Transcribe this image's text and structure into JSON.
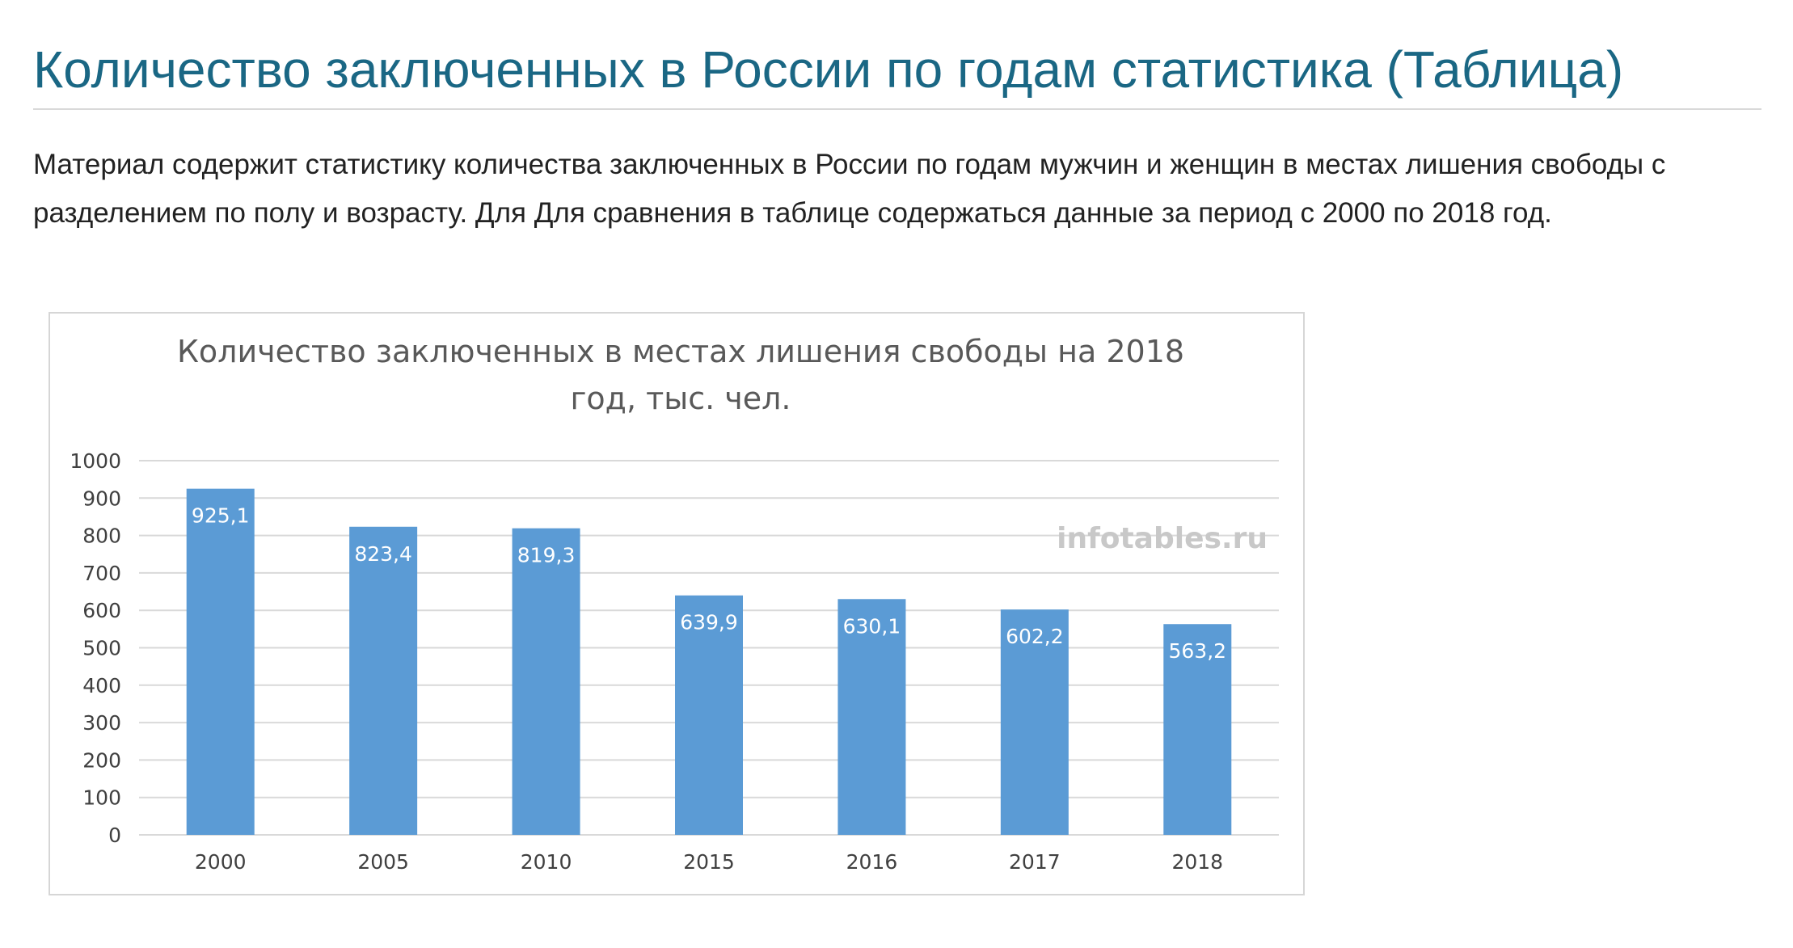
{
  "article": {
    "title": "Количество заключенных в России по годам статистика (Таблица)",
    "intro": "Материал содержит статистику количества заключенных в России по годам мужчин и женщин в местах лишения свободы с разделением по полу и возрасту. Для Для сравнения в таблице содержаться данные за период с 2000 по 2018 год."
  },
  "colors": {
    "bar": "#5b9bd5",
    "title": "#1a6784",
    "grid": "#d9d9d9"
  },
  "chart_data": {
    "type": "bar",
    "title_lines": [
      "Количество заключенных в местах лишения свободы на 2018",
      "год, тыс. чел."
    ],
    "categories": [
      "2000",
      "2005",
      "2010",
      "2015",
      "2016",
      "2017",
      "2018"
    ],
    "values": [
      925.1,
      823.4,
      819.3,
      639.9,
      630.1,
      602.2,
      563.2
    ],
    "data_labels": [
      "925,1",
      "823,4",
      "819,3",
      "639,9",
      "630,1",
      "602,2",
      "563,2"
    ],
    "ylim": [
      0,
      1000
    ],
    "yticks": [
      "0",
      "100",
      "200",
      "300",
      "400",
      "500",
      "600",
      "700",
      "800",
      "900",
      "1000"
    ],
    "grid": true,
    "legend": "none",
    "watermark": "infotables.ru"
  }
}
